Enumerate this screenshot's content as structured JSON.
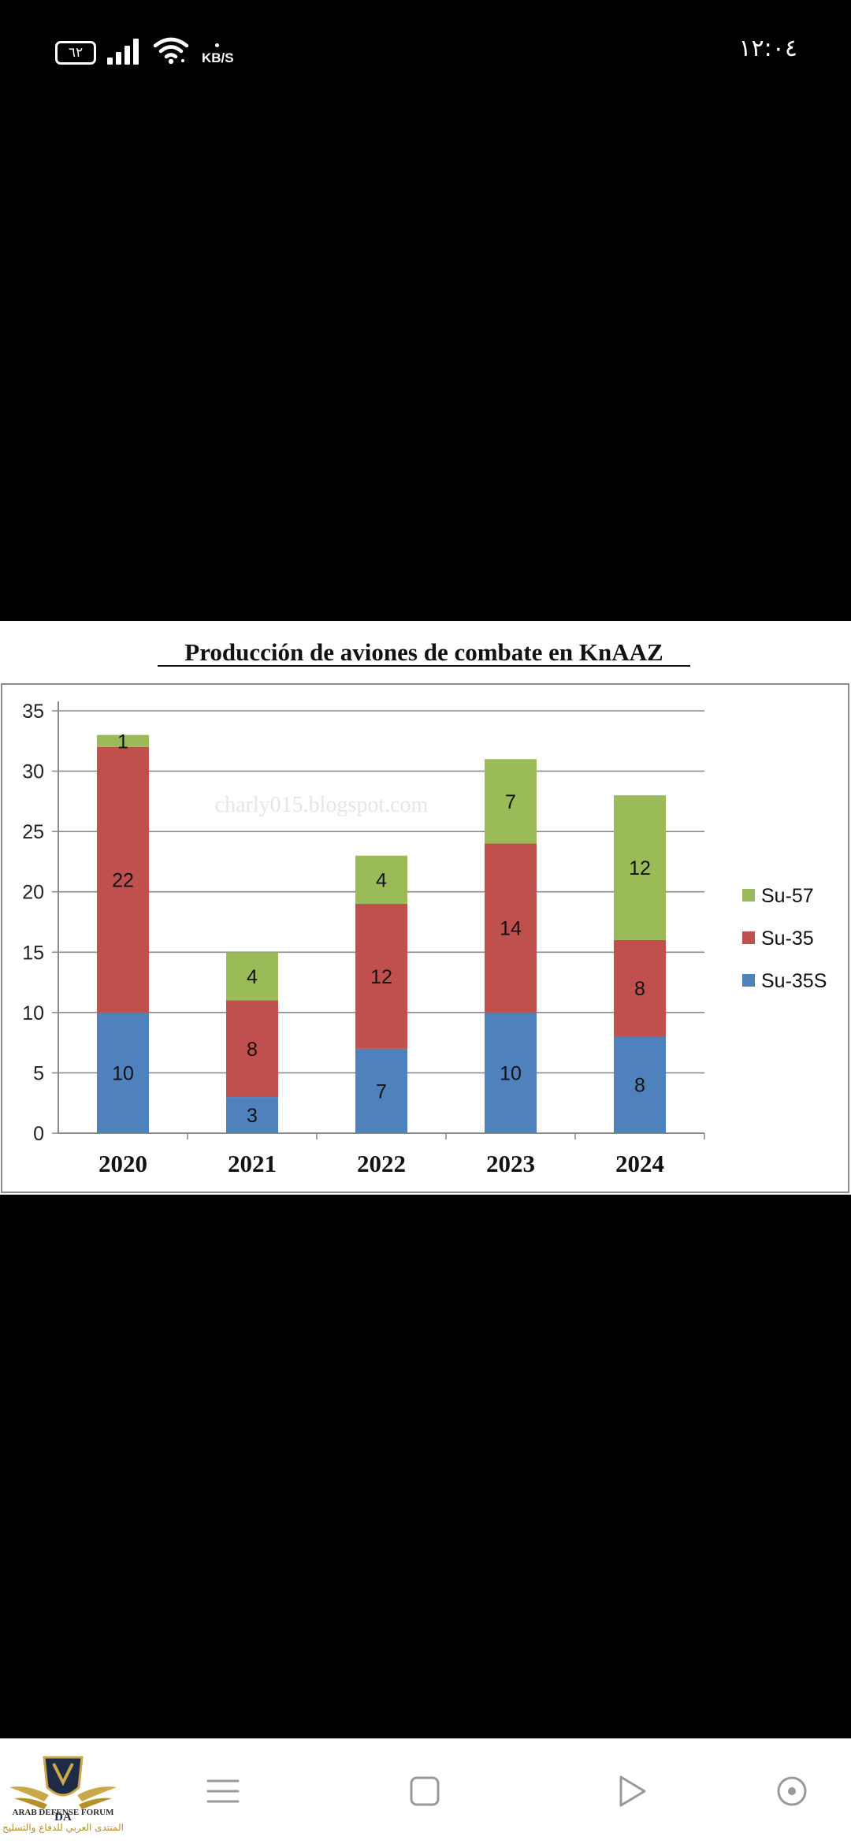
{
  "status_bar": {
    "battery": "٦٢",
    "network_speed": "KB/S",
    "time": "١٢:٠٤"
  },
  "chart_data": {
    "type": "bar",
    "stacked": true,
    "title": "Producción de aviones de combate en KnAAZ",
    "watermark": "charly015.blogspot.com",
    "categories": [
      "2020",
      "2021",
      "2022",
      "2023",
      "2024"
    ],
    "series": [
      {
        "name": "Su-35S",
        "color": "#4f81bd",
        "values": [
          10,
          3,
          7,
          10,
          8
        ]
      },
      {
        "name": "Su-35",
        "color": "#c0504d",
        "values": [
          22,
          8,
          12,
          14,
          8
        ]
      },
      {
        "name": "Su-57",
        "color": "#9bbb59",
        "values": [
          1,
          4,
          4,
          7,
          12
        ]
      }
    ],
    "legend_order": [
      "Su-57",
      "Su-35",
      "Su-35S"
    ],
    "legend_position": "right",
    "ylim": [
      0,
      35
    ],
    "yticks": [
      0,
      5,
      10,
      15,
      20,
      25,
      30,
      35
    ],
    "grid": true,
    "xlabel": "",
    "ylabel": ""
  },
  "nav_bar": {
    "logo": {
      "monogram": "DA",
      "english": "ARAB DEFENSE FORUM",
      "arabic": "المنتدى العربي للدفاع والتسليح"
    },
    "buttons": [
      "menu-icon",
      "home-square-icon",
      "back-play-icon",
      "assistant-circle-icon"
    ]
  }
}
